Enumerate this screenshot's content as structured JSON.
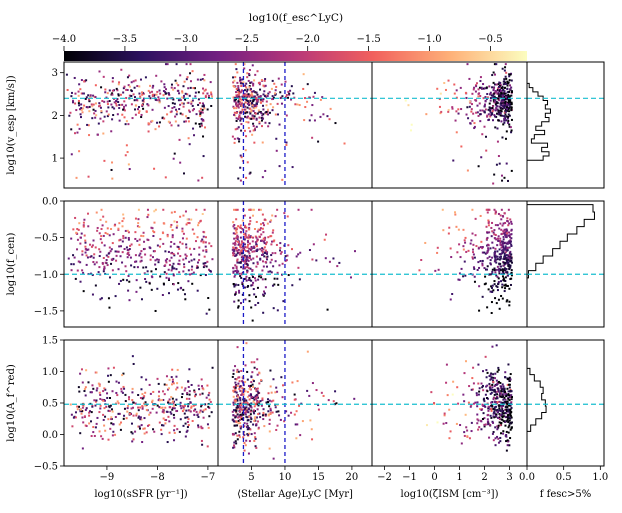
{
  "colorbar": {
    "label": "log10(f_esc^LyC)",
    "range": [
      -4.0,
      -0.2
    ],
    "ticks": [
      -4.0,
      -3.5,
      -3.0,
      -2.5,
      -2.0,
      -1.5,
      -1.0,
      -0.5
    ],
    "tick_labels": [
      "−4.0",
      "−3.5",
      "−3.0",
      "−2.5",
      "−2.0",
      "−1.5",
      "−1.0",
      "−0.5"
    ],
    "colormap": [
      "#000004",
      "#2c115f",
      "#721f81",
      "#b73779",
      "#f1605d",
      "#feb078",
      "#fcfdbf"
    ]
  },
  "chart_data": {
    "type": "scatter",
    "title": "",
    "xlabels": [
      "log10(sSFR [yr⁻¹])",
      "⟨Stellar Age⟩LyC [Myr]",
      "log10(ζISM [cm⁻³])",
      "f fesc>5%"
    ],
    "ylabels": [
      "log10(v_esp [km/s])",
      "log10(f_cen)",
      "log10(A_f^red)"
    ],
    "columns": [
      {
        "name": "sSFR",
        "xlim": [
          -9.85,
          -6.8
        ],
        "ticks": [
          -9,
          -8,
          -7
        ],
        "tick_labels": [
          "−9",
          "−8",
          "−7"
        ]
      },
      {
        "name": "stellar_age",
        "xlim": [
          0,
          23
        ],
        "ticks": [
          5,
          10,
          15,
          20
        ],
        "tick_labels": [
          "5",
          "10",
          "15",
          "20"
        ],
        "vlines": [
          3.8,
          10
        ]
      },
      {
        "name": "zeta_ism",
        "xlim": [
          -2.5,
          3.7
        ],
        "ticks": [
          -2,
          -1,
          0,
          1,
          2,
          3
        ],
        "tick_labels": [
          "−2",
          "−1",
          "0",
          "1",
          "2",
          "3"
        ]
      },
      {
        "name": "f_fesc",
        "xlim": [
          0,
          1.05
        ],
        "ticks": [
          0.0,
          0.5,
          1.0
        ],
        "tick_labels": [
          "0.0",
          "0.5",
          "1.0"
        ]
      }
    ],
    "rows": [
      {
        "name": "v_esp",
        "ylim": [
          0.3,
          3.25
        ],
        "ticks": [
          1,
          2,
          3
        ],
        "tick_labels": [
          "1",
          "2",
          "3"
        ],
        "hline": 2.4,
        "hist_bins": [
          1.0,
          1.1,
          1.2,
          1.3,
          1.4,
          1.5,
          1.6,
          1.7,
          1.8,
          1.9,
          2.0,
          2.1,
          2.2,
          2.3,
          2.4,
          2.5,
          2.6,
          2.7
        ],
        "hist_values": [
          0.22,
          0.3,
          0.2,
          0.28,
          0.06,
          0.1,
          0.24,
          0.12,
          0.2,
          0.3,
          0.25,
          0.32,
          0.25,
          0.28,
          0.22,
          0.15,
          0.08,
          0.03
        ]
      },
      {
        "name": "f_cen",
        "ylim": [
          -1.72,
          0.0
        ],
        "ticks": [
          0.0,
          -0.5,
          -1.0,
          -1.5
        ],
        "tick_labels": [
          "0.0",
          "−0.5",
          "−1.0",
          "−1.5"
        ],
        "hline": -1.0,
        "hist_bins": [
          -1.0,
          -0.9,
          -0.8,
          -0.7,
          -0.6,
          -0.5,
          -0.4,
          -0.3,
          -0.2,
          -0.1
        ],
        "hist_values": [
          0.02,
          0.12,
          0.22,
          0.35,
          0.45,
          0.55,
          0.68,
          0.78,
          0.92,
          0.9
        ]
      },
      {
        "name": "A_f_red",
        "ylim": [
          -0.5,
          1.5
        ],
        "ticks": [
          1.5,
          1.0,
          0.5,
          0.0,
          -0.5
        ],
        "tick_labels": [
          "1.5",
          "1.0",
          "0.5",
          "0.0",
          "−0.5"
        ],
        "hline": 0.48,
        "hist_bins": [
          0.1,
          0.2,
          0.3,
          0.4,
          0.5,
          0.6,
          0.7,
          0.8,
          0.9,
          1.0
        ],
        "hist_values": [
          0.05,
          0.12,
          0.2,
          0.26,
          0.25,
          0.2,
          0.22,
          0.18,
          0.1,
          0.04
        ]
      }
    ],
    "grid": false,
    "legend": "none"
  }
}
